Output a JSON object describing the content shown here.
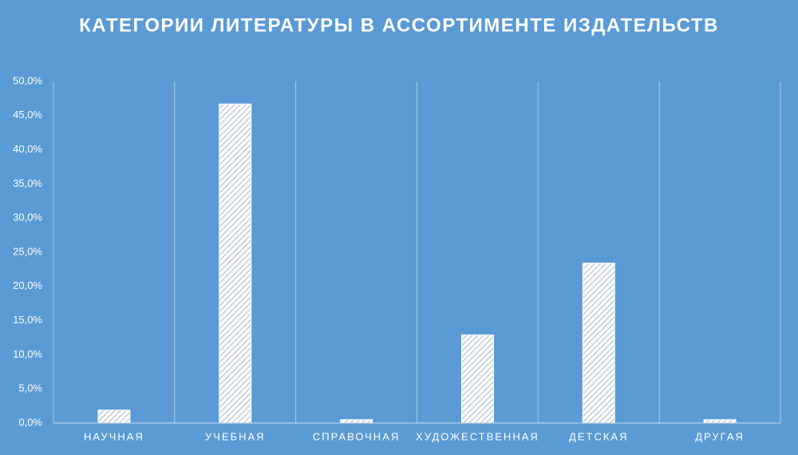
{
  "chart_data": {
    "type": "bar",
    "title": "КАТЕГОРИИ ЛИТЕРАТУРЫ В АССОРТИМЕНТЕ ИЗДАТЕЛЬСТВ",
    "categories": [
      "НАУЧНАЯ",
      "УЧЕБНАЯ",
      "СПРАВОЧНАЯ",
      "ХУДОЖЕСТВЕННАЯ",
      "ДЕТСКАЯ",
      "ДРУГАЯ"
    ],
    "values": [
      1.9,
      46.7,
      0.5,
      12.9,
      23.4,
      0.5
    ],
    "color": "#ffffff",
    "ylim": [
      0,
      50
    ],
    "yticks": [
      {
        "value": 0,
        "label": "0,0%"
      },
      {
        "value": 5,
        "label": "5,0%"
      },
      {
        "value": 10,
        "label": "10,0%"
      },
      {
        "value": 15,
        "label": "15,0%"
      },
      {
        "value": 20,
        "label": "20,0%"
      },
      {
        "value": 25,
        "label": "25,0%"
      },
      {
        "value": 30,
        "label": "30,0%"
      },
      {
        "value": 35,
        "label": "35,0%"
      },
      {
        "value": 40,
        "label": "40,0%"
      },
      {
        "value": 45,
        "label": "45,0%"
      },
      {
        "value": 50,
        "label": "50,0%"
      }
    ],
    "grid": false
  }
}
